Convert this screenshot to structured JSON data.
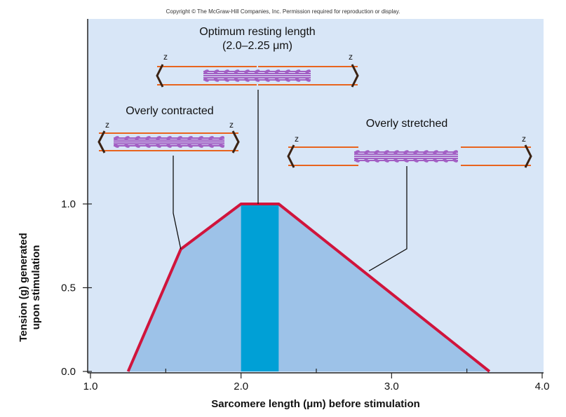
{
  "copyright": "Copyright © The McGraw-Hill Companies, Inc. Permission required for reproduction or display.",
  "colors": {
    "panel": "#d8e6f7",
    "fill": "#9dc2e8",
    "optimum_band": "#00a0d6",
    "curve": "#d0143c",
    "thin_filament": "#e8641e",
    "thick_filament": "#a35fc4",
    "z_disc": "#3b2314"
  },
  "chart_data": {
    "type": "line",
    "xlabel": "Sarcomere length (μm) before stimulation",
    "ylabel": "Tension (g) generated upon stimulation",
    "xlim": [
      1.0,
      4.0
    ],
    "ylim": [
      0.0,
      1.0
    ],
    "x_ticks": [
      "1.0",
      "2.0",
      "3.0",
      "4.0"
    ],
    "y_ticks": [
      "0.0",
      "0.5",
      "1.0"
    ],
    "grid": false,
    "x": [
      1.25,
      1.6,
      2.0,
      2.25,
      3.65
    ],
    "y": [
      0.0,
      0.73,
      1.0,
      1.0,
      0.0
    ],
    "optimum_range": [
      2.0,
      2.25
    ],
    "annotations": [
      {
        "text": "Optimum resting length",
        "subtext": "(2.0–2.25 μm)",
        "x": 2.12,
        "y": 1.0
      },
      {
        "text": "Overly contracted",
        "x": 1.6,
        "y": 0.73
      },
      {
        "text": "Overly stretched",
        "x": 2.85,
        "y": 0.6
      }
    ],
    "z_label": "z"
  }
}
